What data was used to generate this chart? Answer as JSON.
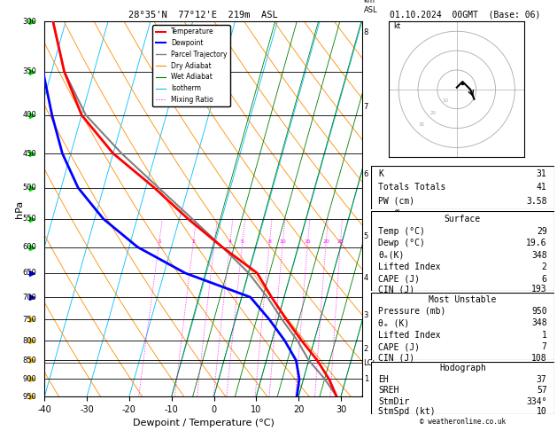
{
  "title_left": "28°35'N  77°12'E  219m  ASL",
  "title_right": "01.10.2024  00GMT  (Base: 06)",
  "xlabel": "Dewpoint / Temperature (°C)",
  "ylabel_left": "hPa",
  "temp_range": [
    -40,
    35
  ],
  "temp_ticks": [
    -40,
    -30,
    -20,
    -10,
    0,
    10,
    20,
    30
  ],
  "background": "#ffffff",
  "plot_bg": "#ffffff",
  "temp_profile_T": [
    29,
    26,
    22,
    17,
    12,
    7,
    2,
    -8,
    -18,
    -28,
    -40,
    -50,
    -57,
    -63
  ],
  "temp_profile_P": [
    950,
    900,
    850,
    800,
    750,
    700,
    650,
    600,
    550,
    500,
    450,
    400,
    350,
    300
  ],
  "dew_profile_T": [
    19.6,
    19,
    17,
    13,
    8,
    2,
    -15,
    -28,
    -38,
    -46,
    -52,
    -57,
    -62,
    -67
  ],
  "dew_profile_P": [
    950,
    900,
    850,
    800,
    750,
    700,
    650,
    600,
    550,
    500,
    450,
    400,
    350,
    300
  ],
  "parcel_T": [
    29,
    25,
    20,
    16,
    11,
    6,
    0,
    -8,
    -17,
    -27,
    -38,
    -49,
    -57,
    -63
  ],
  "parcel_P": [
    950,
    900,
    850,
    800,
    750,
    700,
    650,
    600,
    550,
    500,
    450,
    400,
    350,
    300
  ],
  "color_temp": "#ff0000",
  "color_dew": "#0000ff",
  "color_parcel": "#808080",
  "color_dry_adiabat": "#ff8c00",
  "color_wet_adiabat": "#008000",
  "color_isotherm": "#00bfff",
  "color_mixing": "#ff00ff",
  "km_labels": [
    1,
    2,
    3,
    4,
    5,
    6,
    7,
    8
  ],
  "km_pressures": [
    900,
    820,
    740,
    660,
    580,
    480,
    390,
    310
  ],
  "mixing_ratio_vals": [
    1,
    2,
    3,
    4,
    5,
    8,
    10,
    15,
    20,
    25
  ],
  "lcl_pressure": 857,
  "p_min": 300,
  "p_max": 950,
  "skew_amount": 25,
  "stats": {
    "K": 31,
    "Totals_Totals": 41,
    "PW_cm": 3.58,
    "Surf_Temp": 29,
    "Surf_Dewp": 19.6,
    "Surf_ThetaE": 348,
    "Surf_LI": 2,
    "Surf_CAPE": 6,
    "Surf_CIN": 193,
    "MU_Pressure": 950,
    "MU_ThetaE": 348,
    "MU_LI": 1,
    "MU_CAPE": 7,
    "MU_CIN": 108,
    "Hodo_EH": 37,
    "Hodo_SREH": 57,
    "Hodo_StmDir": 334,
    "Hodo_StmSpd": 10
  }
}
